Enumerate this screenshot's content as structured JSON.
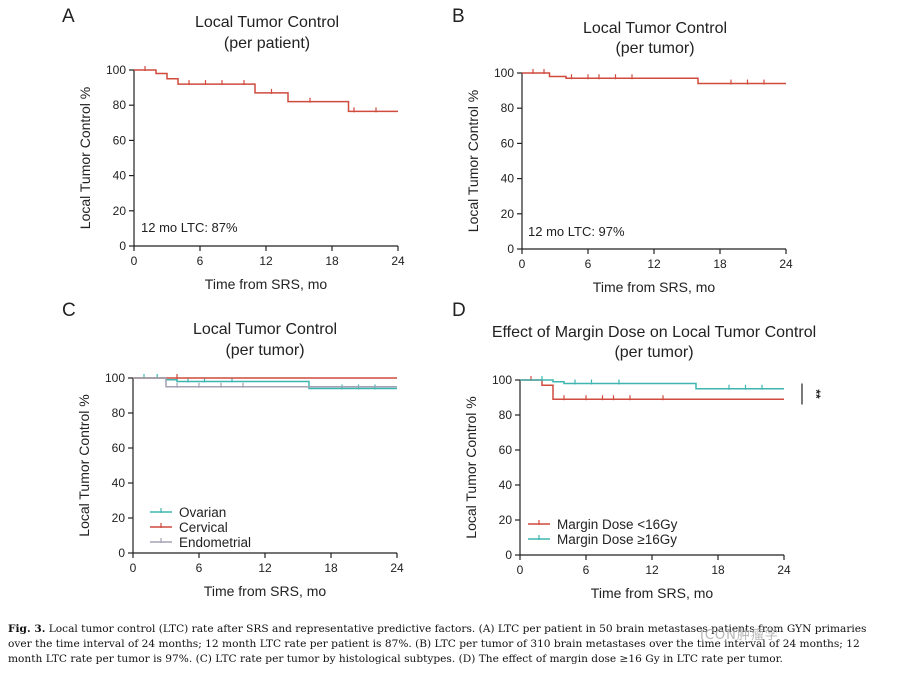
{
  "colors": {
    "red": "#d04a3e",
    "teal": "#3fb5b0",
    "gray": "#a3a3b3",
    "axis": "#222222"
  },
  "chart_data": [
    {
      "id": "A",
      "letter": "A",
      "type": "line",
      "style": "kaplan-meier step",
      "title": [
        "Local Tumor Control",
        "(per patient)"
      ],
      "xlabel": "Time from SRS, mo",
      "ylabel": "Local Tumor Control %",
      "xlim": [
        0,
        24
      ],
      "ylim": [
        0,
        100
      ],
      "xticks": [
        0,
        6,
        12,
        18,
        24
      ],
      "yticks": [
        0,
        20,
        40,
        60,
        80,
        100
      ],
      "grid": false,
      "annotation": "12 mo LTC: 87%",
      "series": [
        {
          "name": "",
          "color": "#d04a3e",
          "steps": [
            [
              0,
              100
            ],
            [
              2,
              98
            ],
            [
              3,
              95
            ],
            [
              4,
              92
            ],
            [
              11,
              87
            ],
            [
              14,
              82
            ],
            [
              19.5,
              76.5
            ],
            [
              24,
              76.5
            ]
          ],
          "censors": [
            [
              1,
              100
            ],
            [
              5,
              92
            ],
            [
              6.5,
              92
            ],
            [
              8,
              92
            ],
            [
              10,
              92
            ],
            [
              12.5,
              87
            ],
            [
              16,
              82
            ],
            [
              20,
              76.5
            ],
            [
              22,
              76.5
            ]
          ]
        }
      ]
    },
    {
      "id": "B",
      "letter": "B",
      "type": "line",
      "style": "kaplan-meier step",
      "title": [
        "Local Tumor Control",
        "(per tumor)"
      ],
      "xlabel": "Time from SRS, mo",
      "ylabel": "Local Tumor Control %",
      "xlim": [
        0,
        24
      ],
      "ylim": [
        0,
        100
      ],
      "xticks": [
        0,
        6,
        12,
        18,
        24
      ],
      "yticks": [
        0,
        20,
        40,
        60,
        80,
        100
      ],
      "grid": false,
      "annotation": "12 mo LTC: 97%",
      "series": [
        {
          "name": "",
          "color": "#d04a3e",
          "steps": [
            [
              0,
              100
            ],
            [
              2.5,
              98
            ],
            [
              4,
              97
            ],
            [
              16,
              94
            ],
            [
              24,
              94
            ]
          ],
          "censors": [
            [
              1,
              100
            ],
            [
              2,
              100
            ],
            [
              4.5,
              97
            ],
            [
              6,
              97
            ],
            [
              7,
              97
            ],
            [
              8.5,
              97
            ],
            [
              10,
              97
            ],
            [
              19,
              94
            ],
            [
              20.5,
              94
            ],
            [
              22,
              94
            ]
          ]
        }
      ]
    },
    {
      "id": "C",
      "letter": "C",
      "type": "line",
      "style": "kaplan-meier step",
      "title": [
        "Local Tumor Control",
        "(per tumor)"
      ],
      "xlabel": "Time from SRS, mo",
      "ylabel": "Local Tumor Control %",
      "xlim": [
        0,
        24
      ],
      "ylim": [
        0,
        100
      ],
      "xticks": [
        0,
        6,
        12,
        18,
        24
      ],
      "yticks": [
        0,
        20,
        40,
        60,
        80,
        100
      ],
      "grid": false,
      "legend": "bottom-left",
      "series": [
        {
          "name": "Ovarian",
          "color": "#3fb5b0",
          "steps": [
            [
              0,
              100
            ],
            [
              3,
              99
            ],
            [
              4,
              98
            ],
            [
              16,
              94
            ],
            [
              24,
              94
            ]
          ],
          "censors": [
            [
              1,
              100
            ],
            [
              2.2,
              100
            ],
            [
              5,
              98
            ],
            [
              6.5,
              98
            ],
            [
              9,
              98
            ],
            [
              19,
              94
            ],
            [
              20.5,
              94
            ],
            [
              22,
              94
            ]
          ]
        },
        {
          "name": "Cervical",
          "color": "#d04a3e",
          "steps": [
            [
              0,
              100
            ],
            [
              24,
              100
            ]
          ],
          "censors": [
            [
              4,
              100
            ]
          ]
        },
        {
          "name": "Endometrial",
          "color": "#a3a3b3",
          "steps": [
            [
              0,
              100
            ],
            [
              3,
              95
            ],
            [
              24,
              95
            ]
          ],
          "censors": [
            [
              4,
              95
            ],
            [
              6,
              95
            ],
            [
              8,
              95
            ],
            [
              10,
              95
            ]
          ]
        }
      ]
    },
    {
      "id": "D",
      "letter": "D",
      "type": "line",
      "style": "kaplan-meier step",
      "title": [
        "Effect of Margin Dose on Local Tumor Control",
        "(per tumor)"
      ],
      "xlabel": "Time from SRS, mo",
      "ylabel": "Local Tumor Control %",
      "xlim": [
        0,
        24
      ],
      "ylim": [
        0,
        100
      ],
      "xticks": [
        0,
        6,
        12,
        18,
        24
      ],
      "yticks": [
        0,
        20,
        40,
        60,
        80,
        100
      ],
      "grid": false,
      "legend": "bottom-left",
      "significance": "**",
      "series": [
        {
          "name": "Margin Dose <16Gy",
          "color": "#d04a3e",
          "steps": [
            [
              0,
              100
            ],
            [
              2,
              97
            ],
            [
              3,
              89
            ],
            [
              24,
              89
            ]
          ],
          "censors": [
            [
              1,
              100
            ],
            [
              4,
              89
            ],
            [
              6,
              89
            ],
            [
              7.5,
              89
            ],
            [
              8.5,
              89
            ],
            [
              10,
              89
            ],
            [
              13,
              89
            ]
          ]
        },
        {
          "name": "Margin Dose ≥16Gy",
          "color": "#3fb5b0",
          "steps": [
            [
              0,
              100
            ],
            [
              3,
              99
            ],
            [
              4,
              98
            ],
            [
              16,
              95
            ],
            [
              24,
              95
            ]
          ],
          "censors": [
            [
              2,
              100
            ],
            [
              5,
              98
            ],
            [
              6.5,
              98
            ],
            [
              9,
              98
            ],
            [
              19,
              95
            ],
            [
              20.5,
              95
            ],
            [
              22,
              95
            ]
          ]
        }
      ]
    }
  ],
  "caption": {
    "label": "Fig. 3.",
    "text": "Local tumor control (LTC) rate after SRS and representative predictive factors. (A) LTC per patient in 50 brain metastases patients from GYN primaries over the time interval of 24 months; 12 month LTC rate per patient is 87%. (B) LTC per tumor of 310 brain metastases over the time interval of 24 months; 12 month LTC rate per tumor is 97%. (C) LTC rate per tumor by histological subtypes. (D) The effect of margin dose ≥16 Gy in LTC rate per tumor."
  },
  "watermark": "ICON肿瘤学"
}
